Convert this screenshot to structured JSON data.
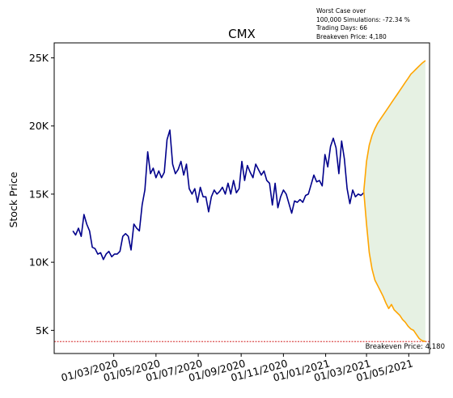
{
  "chart_data": {
    "type": "line",
    "title": "CMX",
    "xlabel": "",
    "ylabel": "Stock Price",
    "xlim": [
      "2019-12-06",
      "2021-05-31"
    ],
    "ylim": [
      3300,
      26100
    ],
    "y_ticks": [
      5000,
      10000,
      15000,
      20000,
      25000
    ],
    "y_tick_labels": [
      "5K",
      "10K",
      "15K",
      "20K",
      "25K"
    ],
    "x_ticks": [
      "2020-03-01",
      "2020-05-01",
      "2020-07-01",
      "2020-09-01",
      "2020-11-01",
      "2021-01-01",
      "2021-03-01",
      "2021-05-01"
    ],
    "x_tick_labels": [
      "01/03/2020",
      "01/05/2020",
      "01/07/2020",
      "01/09/2020",
      "01/11/2020",
      "01/01/2021",
      "01/03/2021",
      "01/05/2021"
    ],
    "grid": false,
    "colors": {
      "history": "#00008b",
      "bands": "#ffa500",
      "fill": "#e3efe0",
      "breakeven": "#cc0000"
    },
    "history": {
      "x": [
        "2020-01-02",
        "2020-01-06",
        "2020-01-10",
        "2020-01-14",
        "2020-01-18",
        "2020-01-22",
        "2020-01-26",
        "2020-01-30",
        "2020-02-03",
        "2020-02-07",
        "2020-02-11",
        "2020-02-15",
        "2020-02-19",
        "2020-02-23",
        "2020-02-27",
        "2020-03-02",
        "2020-03-06",
        "2020-03-10",
        "2020-03-14",
        "2020-03-18",
        "2020-03-22",
        "2020-03-26",
        "2020-03-30",
        "2020-04-03",
        "2020-04-07",
        "2020-04-11",
        "2020-04-15",
        "2020-04-19",
        "2020-04-23",
        "2020-04-27",
        "2020-05-01",
        "2020-05-05",
        "2020-05-09",
        "2020-05-13",
        "2020-05-17",
        "2020-05-21",
        "2020-05-25",
        "2020-05-29",
        "2020-06-02",
        "2020-06-06",
        "2020-06-10",
        "2020-06-14",
        "2020-06-18",
        "2020-06-22",
        "2020-06-26",
        "2020-06-30",
        "2020-07-04",
        "2020-07-08",
        "2020-07-12",
        "2020-07-16",
        "2020-07-20",
        "2020-07-24",
        "2020-07-28",
        "2020-08-01",
        "2020-08-05",
        "2020-08-09",
        "2020-08-13",
        "2020-08-17",
        "2020-08-21",
        "2020-08-25",
        "2020-08-29",
        "2020-09-02",
        "2020-09-06",
        "2020-09-10",
        "2020-09-14",
        "2020-09-18",
        "2020-09-22",
        "2020-09-26",
        "2020-09-30",
        "2020-10-04",
        "2020-10-08",
        "2020-10-12",
        "2020-10-16",
        "2020-10-20",
        "2020-10-24",
        "2020-10-28",
        "2020-11-01",
        "2020-11-05",
        "2020-11-09",
        "2020-11-13",
        "2020-11-17",
        "2020-11-21",
        "2020-11-25",
        "2020-11-29",
        "2020-12-03",
        "2020-12-07",
        "2020-12-11",
        "2020-12-15",
        "2020-12-19",
        "2020-12-23",
        "2020-12-27",
        "2020-12-31",
        "2021-01-04",
        "2021-01-08",
        "2021-01-12",
        "2021-01-16",
        "2021-01-20",
        "2021-01-24",
        "2021-01-28",
        "2021-02-01",
        "2021-02-05",
        "2021-02-09",
        "2021-02-13",
        "2021-02-17",
        "2021-02-21",
        "2021-02-25"
      ],
      "y": [
        12300,
        12000,
        12500,
        11900,
        13500,
        12800,
        12300,
        11100,
        11000,
        10600,
        10700,
        10200,
        10600,
        10800,
        10400,
        10600,
        10600,
        10800,
        11900,
        12100,
        11900,
        10900,
        12800,
        12500,
        12300,
        14200,
        15300,
        18100,
        16500,
        16900,
        16200,
        16700,
        16200,
        16600,
        19000,
        19700,
        17200,
        16500,
        16800,
        17400,
        16400,
        17200,
        15400,
        15000,
        15400,
        14400,
        15500,
        14800,
        14800,
        13700,
        14800,
        15300,
        15000,
        15200,
        15500,
        15000,
        15800,
        15000,
        16000,
        15100,
        15400,
        17400,
        16000,
        17100,
        16600,
        16200,
        17200,
        16800,
        16400,
        16700,
        16000,
        15800,
        14200,
        15800,
        14000,
        14800,
        15300,
        15000,
        14300,
        13600,
        14500,
        14400,
        14600,
        14400,
        14900,
        15000,
        15700,
        16400,
        15900,
        16000,
        15600,
        17900,
        17000,
        18500,
        19100,
        18400,
        16500,
        18900,
        17600,
        15400,
        14300,
        15300,
        14800,
        15000,
        14900,
        15100
      ],
      "name": ""
    },
    "upper_band": {
      "x": [
        "2021-02-25",
        "2021-03-01",
        "2021-03-05",
        "2021-03-09",
        "2021-03-13",
        "2021-03-17",
        "2021-03-21",
        "2021-03-25",
        "2021-03-29",
        "2021-04-02",
        "2021-04-06",
        "2021-04-10",
        "2021-04-14",
        "2021-04-18",
        "2021-04-22",
        "2021-04-26",
        "2021-04-30",
        "2021-05-04",
        "2021-05-08",
        "2021-05-12",
        "2021-05-16",
        "2021-05-20",
        "2021-05-25"
      ],
      "y": [
        15200,
        17400,
        18600,
        19300,
        19800,
        20200,
        20500,
        20800,
        21100,
        21400,
        21700,
        22000,
        22300,
        22600,
        22900,
        23200,
        23500,
        23800,
        24000,
        24200,
        24400,
        24600,
        24800
      ]
    },
    "lower_band": {
      "x": [
        "2021-02-25",
        "2021-03-01",
        "2021-03-05",
        "2021-03-09",
        "2021-03-13",
        "2021-03-17",
        "2021-03-21",
        "2021-03-25",
        "2021-03-29",
        "2021-04-02",
        "2021-04-06",
        "2021-04-10",
        "2021-04-14",
        "2021-04-18",
        "2021-04-22",
        "2021-04-26",
        "2021-04-30",
        "2021-05-04",
        "2021-05-08",
        "2021-05-12",
        "2021-05-16",
        "2021-05-20",
        "2021-05-25"
      ],
      "y": [
        15200,
        12800,
        10700,
        9500,
        8700,
        8300,
        7900,
        7500,
        7000,
        6600,
        6900,
        6500,
        6300,
        6100,
        5800,
        5600,
        5300,
        5100,
        5000,
        4700,
        4400,
        4250,
        4180
      ]
    },
    "breakeven": {
      "value": 4180,
      "label": "Breakeven Price: 4,180"
    },
    "annotation": [
      "Worst Case over",
      "100,000 Simulations: -72.34 %",
      "Trading Days: 66",
      "Breakeven Price: 4,180"
    ]
  }
}
